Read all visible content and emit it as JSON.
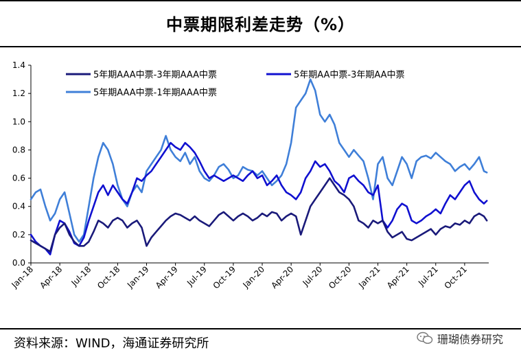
{
  "title": "中票期限利差走势（%）",
  "source": "资料来源：WIND，海通证券研究所",
  "watermark": "珊瑚债券研究",
  "chart_data": {
    "type": "line",
    "title": "中票期限利差走势（%）",
    "xlabel": "",
    "ylabel": "",
    "ylim": [
      0,
      1.4
    ],
    "yticks": [
      "0.0",
      "0.2",
      "0.4",
      "0.6",
      "0.8",
      "1.0",
      "1.2",
      "1.4"
    ],
    "xticks": [
      "Jan-18",
      "Apr-18",
      "Jul-18",
      "Oct-18",
      "Jan-19",
      "Apr-19",
      "Jul-19",
      "Oct-19",
      "Jan-20",
      "Apr-20",
      "Jul-20",
      "Oct-20",
      "Jan-21",
      "Apr-21",
      "Jul-21",
      "Oct-21"
    ],
    "x_month_range": [
      0,
      47.5
    ],
    "series": [
      {
        "name": "5年期AAA中票-3年期AAA中票",
        "color": "#1a1a7a",
        "x": [
          0,
          0.5,
          1,
          1.5,
          2,
          2.5,
          3,
          3.5,
          4,
          4.5,
          5,
          5.5,
          6,
          6.5,
          7,
          7.5,
          8,
          8.5,
          9,
          9.5,
          10,
          10.5,
          11,
          11.5,
          12,
          12.5,
          13,
          13.5,
          14,
          14.5,
          15,
          15.5,
          16,
          16.5,
          17,
          17.5,
          18,
          18.5,
          19,
          19.5,
          20,
          20.5,
          21,
          21.5,
          22,
          22.5,
          23,
          23.5,
          24,
          24.5,
          25,
          25.5,
          26,
          26.5,
          27,
          27.5,
          28,
          28.5,
          29,
          29.5,
          30,
          30.5,
          31,
          31.5,
          32,
          32.5,
          33,
          33.5,
          34,
          34.5,
          35,
          35.5,
          36,
          36.5,
          37,
          37.5,
          38,
          38.5,
          39,
          39.5,
          40,
          40.5,
          41,
          41.5,
          42,
          42.5,
          43,
          43.5,
          44,
          44.5,
          45,
          45.5,
          46,
          46.5,
          47,
          47.3
        ],
        "values": [
          0.16,
          0.14,
          0.12,
          0.1,
          0.08,
          0.2,
          0.25,
          0.28,
          0.2,
          0.15,
          0.12,
          0.12,
          0.15,
          0.22,
          0.3,
          0.28,
          0.25,
          0.3,
          0.32,
          0.3,
          0.25,
          0.28,
          0.3,
          0.25,
          0.12,
          0.18,
          0.22,
          0.26,
          0.3,
          0.33,
          0.35,
          0.34,
          0.32,
          0.3,
          0.33,
          0.3,
          0.28,
          0.26,
          0.3,
          0.34,
          0.36,
          0.33,
          0.3,
          0.33,
          0.35,
          0.33,
          0.3,
          0.32,
          0.35,
          0.33,
          0.36,
          0.35,
          0.3,
          0.33,
          0.35,
          0.33,
          0.2,
          0.3,
          0.4,
          0.45,
          0.5,
          0.55,
          0.6,
          0.55,
          0.5,
          0.48,
          0.45,
          0.4,
          0.3,
          0.28,
          0.25,
          0.3,
          0.28,
          0.3,
          0.22,
          0.18,
          0.2,
          0.22,
          0.17,
          0.16,
          0.18,
          0.2,
          0.22,
          0.24,
          0.2,
          0.24,
          0.26,
          0.25,
          0.28,
          0.27,
          0.3,
          0.28,
          0.33,
          0.35,
          0.33,
          0.3
        ],
        "values_alt_note": "dark navy series"
      },
      {
        "name": "5年期AA中票-3年期AA中票",
        "color": "#1010d0",
        "x": [
          0,
          0.5,
          1,
          1.5,
          2,
          2.5,
          3,
          3.5,
          4,
          4.5,
          5,
          5.5,
          6,
          6.5,
          7,
          7.5,
          8,
          8.5,
          9,
          9.5,
          10,
          10.5,
          11,
          11.5,
          12,
          12.5,
          13,
          13.5,
          14,
          14.5,
          15,
          15.5,
          16,
          16.5,
          17,
          17.5,
          18,
          18.5,
          19,
          19.5,
          20,
          20.5,
          21,
          21.5,
          22,
          22.5,
          23,
          23.5,
          24,
          24.5,
          25,
          25.5,
          26,
          26.5,
          27,
          27.5,
          28,
          28.5,
          29,
          29.5,
          30,
          30.5,
          31,
          31.5,
          32,
          32.5,
          33,
          33.5,
          34,
          34.5,
          35,
          35.5,
          36,
          36.5,
          37,
          37.5,
          38,
          38.5,
          39,
          39.5,
          40,
          40.5,
          41,
          41.5,
          42,
          42.5,
          43,
          43.5,
          44,
          44.5,
          45,
          45.5,
          46,
          46.5,
          47,
          47.3
        ],
        "values": [
          0.2,
          0.15,
          0.12,
          0.1,
          0.06,
          0.2,
          0.3,
          0.28,
          0.22,
          0.14,
          0.12,
          0.18,
          0.3,
          0.4,
          0.5,
          0.55,
          0.48,
          0.55,
          0.5,
          0.45,
          0.42,
          0.5,
          0.6,
          0.58,
          0.62,
          0.65,
          0.7,
          0.75,
          0.8,
          0.85,
          0.82,
          0.8,
          0.85,
          0.82,
          0.78,
          0.72,
          0.65,
          0.6,
          0.62,
          0.6,
          0.58,
          0.6,
          0.62,
          0.6,
          0.58,
          0.62,
          0.65,
          0.6,
          0.62,
          0.55,
          0.58,
          0.62,
          0.55,
          0.5,
          0.48,
          0.45,
          0.5,
          0.6,
          0.65,
          0.72,
          0.68,
          0.7,
          0.65,
          0.58,
          0.55,
          0.5,
          0.6,
          0.62,
          0.58,
          0.55,
          0.5,
          0.48,
          0.55,
          0.3,
          0.25,
          0.3,
          0.38,
          0.42,
          0.4,
          0.3,
          0.28,
          0.3,
          0.33,
          0.35,
          0.38,
          0.35,
          0.42,
          0.48,
          0.45,
          0.5,
          0.55,
          0.58,
          0.5,
          0.45,
          0.42,
          0.44
        ]
      },
      {
        "name": "5年期AAA中票-1年期AAA中票",
        "color": "#3f7fd8",
        "x": [
          0,
          0.5,
          1,
          1.5,
          2,
          2.5,
          3,
          3.5,
          4,
          4.5,
          5,
          5.5,
          6,
          6.5,
          7,
          7.5,
          8,
          8.5,
          9,
          9.5,
          10,
          10.5,
          11,
          11.5,
          12,
          12.5,
          13,
          13.5,
          14,
          14.5,
          15,
          15.5,
          16,
          16.5,
          17,
          17.5,
          18,
          18.5,
          19,
          19.5,
          20,
          20.5,
          21,
          21.5,
          22,
          22.5,
          23,
          23.5,
          24,
          24.5,
          25,
          25.5,
          26,
          26.5,
          27,
          27.5,
          28,
          28.5,
          29,
          29.5,
          30,
          30.5,
          31,
          31.5,
          32,
          32.5,
          33,
          33.5,
          34,
          34.5,
          35,
          35.5,
          36,
          36.5,
          37,
          37.5,
          38,
          38.5,
          39,
          39.5,
          40,
          40.5,
          41,
          41.5,
          42,
          42.5,
          43,
          43.5,
          44,
          44.5,
          45,
          45.5,
          46,
          46.5,
          47,
          47.3
        ],
        "values": [
          0.45,
          0.5,
          0.52,
          0.4,
          0.3,
          0.35,
          0.45,
          0.5,
          0.35,
          0.2,
          0.15,
          0.2,
          0.4,
          0.6,
          0.75,
          0.85,
          0.8,
          0.7,
          0.55,
          0.45,
          0.4,
          0.5,
          0.55,
          0.5,
          0.65,
          0.7,
          0.75,
          0.8,
          0.9,
          0.8,
          0.75,
          0.72,
          0.78,
          0.7,
          0.75,
          0.65,
          0.6,
          0.58,
          0.62,
          0.68,
          0.7,
          0.66,
          0.6,
          0.62,
          0.68,
          0.66,
          0.65,
          0.62,
          0.65,
          0.6,
          0.55,
          0.58,
          0.62,
          0.7,
          0.85,
          1.1,
          1.15,
          1.2,
          1.3,
          1.22,
          1.05,
          1.0,
          1.05,
          0.98,
          0.85,
          0.8,
          0.75,
          0.8,
          0.76,
          0.72,
          0.6,
          0.45,
          0.7,
          0.75,
          0.6,
          0.55,
          0.65,
          0.75,
          0.7,
          0.6,
          0.72,
          0.75,
          0.76,
          0.74,
          0.78,
          0.75,
          0.72,
          0.7,
          0.65,
          0.68,
          0.7,
          0.66,
          0.7,
          0.75,
          0.65,
          0.64
        ]
      }
    ]
  }
}
